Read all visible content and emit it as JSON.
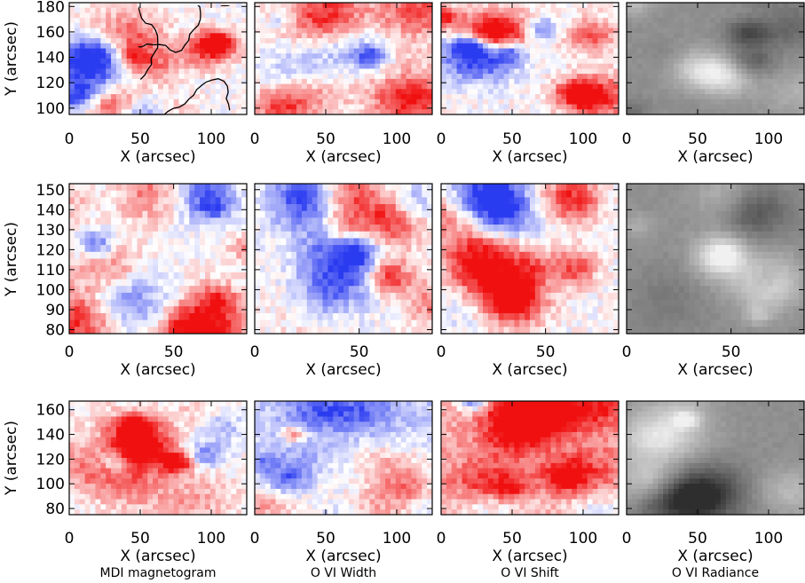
{
  "chart_data": {
    "type": "heatmap",
    "colormaps": {
      "diverging": {
        "negative": "#2b3cf0",
        "zero": "#ffffff",
        "positive": "#f01010"
      },
      "grayscale": {
        "low": "#2e2e2e",
        "high": "#f0f0f0"
      }
    },
    "columns": [
      {
        "caption": "MDI magnetogram",
        "colormap": "diverging"
      },
      {
        "caption": "O VI Width",
        "colormap": "diverging"
      },
      {
        "caption": "O VI Shift",
        "colormap": "diverging"
      },
      {
        "caption": "O VI Radiance",
        "colormap": "grayscale"
      }
    ],
    "rows": [
      {
        "xlabel": "X (arcsec)",
        "ylabel": "Y (arcsec)",
        "xlim": [
          0,
          125
        ],
        "ylim": [
          95,
          183
        ],
        "xticks": [
          "0",
          "50",
          "100"
        ],
        "yticks": [
          "100",
          "120",
          "140",
          "160",
          "180"
        ],
        "xtick_values": [
          0,
          50,
          100
        ],
        "ytick_values": [
          100,
          120,
          140,
          160,
          180
        ]
      },
      {
        "xlabel": "X (arcsec)",
        "ylabel": "Y (arcsec)",
        "xlim": [
          0,
          85
        ],
        "ylim": [
          78,
          153
        ],
        "xticks": [
          "0",
          "50"
        ],
        "yticks": [
          "80",
          "90",
          "100",
          "110",
          "120",
          "130",
          "140",
          "150"
        ],
        "xtick_values": [
          0,
          50
        ],
        "ytick_values": [
          80,
          90,
          100,
          110,
          120,
          130,
          140,
          150
        ]
      },
      {
        "xlabel": "X (arcsec)",
        "ylabel": "Y (arcsec)",
        "xlim": [
          0,
          125
        ],
        "ylim": [
          75,
          167
        ],
        "xticks": [
          "0",
          "50",
          "100"
        ],
        "yticks": [
          "80",
          "100",
          "120",
          "140",
          "160"
        ],
        "xtick_values": [
          0,
          50,
          100
        ],
        "ytick_values": [
          80,
          100,
          120,
          140,
          160
        ]
      }
    ]
  }
}
